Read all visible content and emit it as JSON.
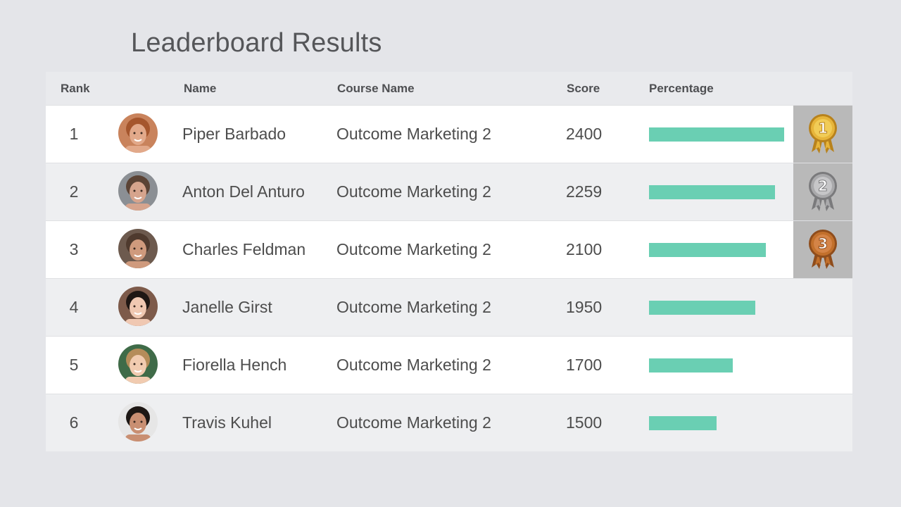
{
  "title": "Leaderboard Results",
  "columns": {
    "rank": "Rank",
    "name": "Name",
    "course": "Course Name",
    "score": "Score",
    "percentage": "Percentage"
  },
  "max_score": 2400,
  "rows": [
    {
      "rank": "1",
      "name": "Piper Barbado",
      "course": "Outcome Marketing 2",
      "score": "2400",
      "percent": 1.0,
      "medal": "gold",
      "medal_number": "1",
      "avatar": {
        "skin": "#e2a98a",
        "hair": "#a5562d",
        "bg": "#c9835c"
      }
    },
    {
      "rank": "2",
      "name": "Anton Del Anturo",
      "course": "Outcome Marketing 2",
      "score": "2259",
      "percent": 0.93,
      "medal": "silver",
      "medal_number": "2",
      "avatar": {
        "skin": "#d6a48d",
        "hair": "#5b4335",
        "bg": "#8b8f94"
      }
    },
    {
      "rank": "3",
      "name": "Charles Feldman",
      "course": "Outcome Marketing 2",
      "score": "2100",
      "percent": 0.865,
      "medal": "bronze",
      "medal_number": "3",
      "avatar": {
        "skin": "#cf9a7d",
        "hair": "#4f3a2e",
        "bg": "#6d5a4e"
      }
    },
    {
      "rank": "4",
      "name": "Janelle Girst",
      "course": "Outcome Marketing 2",
      "score": "1950",
      "percent": 0.785,
      "medal": "",
      "medal_number": "",
      "avatar": {
        "skin": "#f0c8b2",
        "hair": "#1f1714",
        "bg": "#7d5a4a"
      }
    },
    {
      "rank": "5",
      "name": "Fiorella Hench",
      "course": "Outcome Marketing 2",
      "score": "1700",
      "percent": 0.62,
      "medal": "",
      "medal_number": "",
      "avatar": {
        "skin": "#f1cbb0",
        "hair": "#b58c5a",
        "bg": "#3f6b48"
      }
    },
    {
      "rank": "6",
      "name": "Travis Kuhel",
      "course": "Outcome Marketing 2",
      "score": "1500",
      "percent": 0.5,
      "medal": "",
      "medal_number": "",
      "avatar": {
        "skin": "#c98f72",
        "hair": "#1d1714",
        "bg": "#e6e6e6"
      }
    }
  ],
  "colors": {
    "bar": "#6acfb3",
    "gold": "#e7b53a",
    "silver": "#a9a9ab",
    "bronze": "#c2702c",
    "medal_cell": "#b9b9b9"
  }
}
